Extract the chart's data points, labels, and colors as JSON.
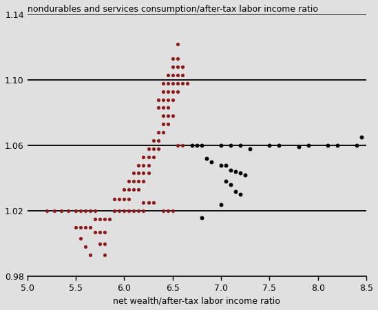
{
  "title": "nondurables and services consumption/after-tax labor income ratio",
  "xlabel": "net wealth/after-tax labor income ratio",
  "xlim": [
    5.0,
    8.5
  ],
  "ylim": [
    0.98,
    1.14
  ],
  "xticks": [
    5.0,
    5.5,
    6.0,
    6.5,
    7.0,
    7.5,
    8.0,
    8.5
  ],
  "yticks": [
    0.98,
    1.02,
    1.06,
    1.1,
    1.14
  ],
  "hlines": [
    1.02,
    1.06,
    1.1,
    1.14
  ],
  "background_color": "#e0e0e0",
  "red_color": "#8b1a1a",
  "black_color": "#000000",
  "red_points": [
    [
      5.2,
      1.02
    ],
    [
      5.28,
      1.02
    ],
    [
      5.35,
      1.02
    ],
    [
      5.42,
      1.02
    ],
    [
      5.5,
      1.02
    ],
    [
      5.55,
      1.02
    ],
    [
      5.6,
      1.02
    ],
    [
      5.65,
      1.02
    ],
    [
      5.7,
      1.02
    ],
    [
      5.5,
      1.01
    ],
    [
      5.55,
      1.01
    ],
    [
      5.6,
      1.01
    ],
    [
      5.65,
      1.01
    ],
    [
      5.55,
      1.003
    ],
    [
      5.6,
      0.998
    ],
    [
      5.65,
      0.993
    ],
    [
      5.7,
      1.015
    ],
    [
      5.75,
      1.015
    ],
    [
      5.8,
      1.015
    ],
    [
      5.85,
      1.015
    ],
    [
      5.7,
      1.007
    ],
    [
      5.75,
      1.007
    ],
    [
      5.8,
      1.007
    ],
    [
      5.75,
      1.0
    ],
    [
      5.8,
      1.0
    ],
    [
      5.8,
      0.993
    ],
    [
      5.9,
      1.02
    ],
    [
      5.95,
      1.02
    ],
    [
      6.0,
      1.02
    ],
    [
      6.05,
      1.02
    ],
    [
      6.1,
      1.02
    ],
    [
      6.15,
      1.02
    ],
    [
      6.2,
      1.02
    ],
    [
      5.9,
      1.027
    ],
    [
      5.95,
      1.027
    ],
    [
      6.0,
      1.027
    ],
    [
      6.05,
      1.027
    ],
    [
      6.0,
      1.033
    ],
    [
      6.05,
      1.033
    ],
    [
      6.1,
      1.033
    ],
    [
      6.15,
      1.033
    ],
    [
      6.05,
      1.038
    ],
    [
      6.1,
      1.038
    ],
    [
      6.15,
      1.038
    ],
    [
      6.2,
      1.038
    ],
    [
      6.1,
      1.043
    ],
    [
      6.15,
      1.043
    ],
    [
      6.2,
      1.043
    ],
    [
      6.25,
      1.043
    ],
    [
      6.15,
      1.048
    ],
    [
      6.2,
      1.048
    ],
    [
      6.25,
      1.048
    ],
    [
      6.2,
      1.053
    ],
    [
      6.25,
      1.053
    ],
    [
      6.3,
      1.053
    ],
    [
      6.25,
      1.058
    ],
    [
      6.3,
      1.058
    ],
    [
      6.35,
      1.058
    ],
    [
      6.3,
      1.063
    ],
    [
      6.35,
      1.063
    ],
    [
      6.35,
      1.068
    ],
    [
      6.4,
      1.068
    ],
    [
      6.4,
      1.073
    ],
    [
      6.45,
      1.073
    ],
    [
      6.4,
      1.078
    ],
    [
      6.45,
      1.078
    ],
    [
      6.5,
      1.078
    ],
    [
      6.35,
      1.083
    ],
    [
      6.4,
      1.083
    ],
    [
      6.45,
      1.083
    ],
    [
      6.35,
      1.088
    ],
    [
      6.4,
      1.088
    ],
    [
      6.45,
      1.088
    ],
    [
      6.5,
      1.088
    ],
    [
      6.4,
      1.093
    ],
    [
      6.45,
      1.093
    ],
    [
      6.5,
      1.093
    ],
    [
      6.55,
      1.093
    ],
    [
      6.4,
      1.098
    ],
    [
      6.45,
      1.098
    ],
    [
      6.5,
      1.098
    ],
    [
      6.55,
      1.098
    ],
    [
      6.6,
      1.098
    ],
    [
      6.65,
      1.098
    ],
    [
      6.45,
      1.103
    ],
    [
      6.5,
      1.103
    ],
    [
      6.55,
      1.103
    ],
    [
      6.6,
      1.103
    ],
    [
      6.5,
      1.108
    ],
    [
      6.55,
      1.108
    ],
    [
      6.6,
      1.108
    ],
    [
      6.5,
      1.113
    ],
    [
      6.55,
      1.113
    ],
    [
      6.55,
      1.122
    ],
    [
      6.2,
      1.025
    ],
    [
      6.25,
      1.025
    ],
    [
      6.3,
      1.025
    ],
    [
      6.4,
      1.02
    ],
    [
      6.45,
      1.02
    ],
    [
      6.5,
      1.02
    ],
    [
      6.55,
      1.06
    ],
    [
      6.6,
      1.06
    ]
  ],
  "black_points": [
    [
      6.7,
      1.06
    ],
    [
      6.75,
      1.06
    ],
    [
      6.8,
      1.06
    ],
    [
      7.0,
      1.06
    ],
    [
      7.1,
      1.06
    ],
    [
      7.2,
      1.06
    ],
    [
      7.3,
      1.058
    ],
    [
      7.5,
      1.06
    ],
    [
      7.6,
      1.06
    ],
    [
      7.8,
      1.059
    ],
    [
      7.9,
      1.06
    ],
    [
      8.1,
      1.06
    ],
    [
      8.2,
      1.06
    ],
    [
      8.4,
      1.06
    ],
    [
      8.45,
      1.065
    ],
    [
      6.85,
      1.052
    ],
    [
      6.9,
      1.05
    ],
    [
      7.0,
      1.048
    ],
    [
      7.05,
      1.048
    ],
    [
      7.1,
      1.045
    ],
    [
      7.15,
      1.044
    ],
    [
      7.2,
      1.043
    ],
    [
      7.25,
      1.042
    ],
    [
      7.05,
      1.038
    ],
    [
      7.1,
      1.036
    ],
    [
      7.15,
      1.032
    ],
    [
      7.2,
      1.03
    ],
    [
      6.8,
      1.016
    ],
    [
      7.0,
      1.024
    ]
  ]
}
